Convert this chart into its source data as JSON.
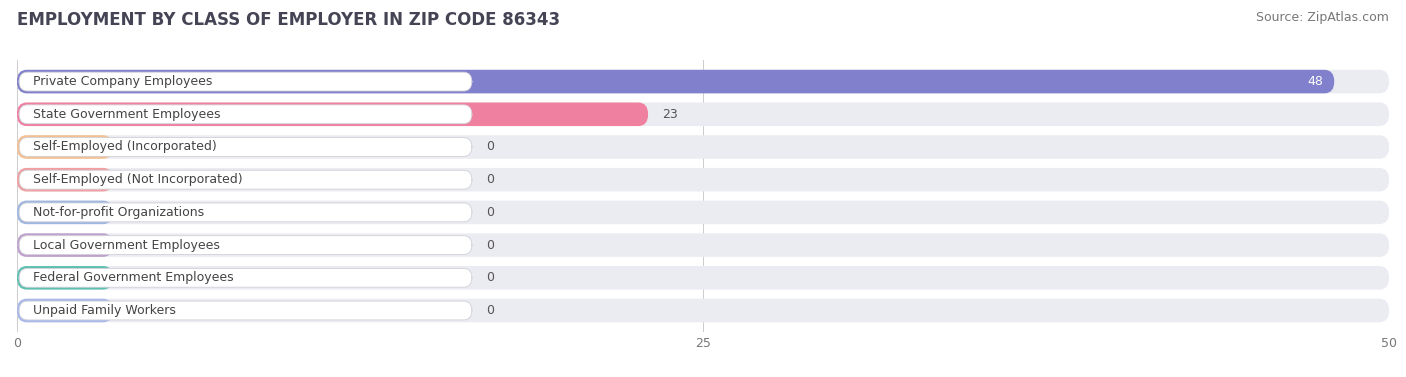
{
  "title": "EMPLOYMENT BY CLASS OF EMPLOYER IN ZIP CODE 86343",
  "source": "Source: ZipAtlas.com",
  "categories": [
    "Private Company Employees",
    "State Government Employees",
    "Self-Employed (Incorporated)",
    "Self-Employed (Not Incorporated)",
    "Not-for-profit Organizations",
    "Local Government Employees",
    "Federal Government Employees",
    "Unpaid Family Workers"
  ],
  "values": [
    48,
    23,
    0,
    0,
    0,
    0,
    0,
    0
  ],
  "bar_colors": [
    "#8080cc",
    "#f080a0",
    "#f5c090",
    "#f0a0a0",
    "#a0b8e0",
    "#c0a0cc",
    "#60c0b0",
    "#a8b8e8"
  ],
  "xlim": [
    0,
    50
  ],
  "xticks": [
    0,
    25,
    50
  ],
  "background_color": "#ffffff",
  "bar_bg_color": "#ebebf2",
  "row_bg_color": "#f8f8fc",
  "title_fontsize": 12,
  "source_fontsize": 9,
  "bar_height": 0.72,
  "value_fontsize": 9,
  "label_fontsize": 9
}
